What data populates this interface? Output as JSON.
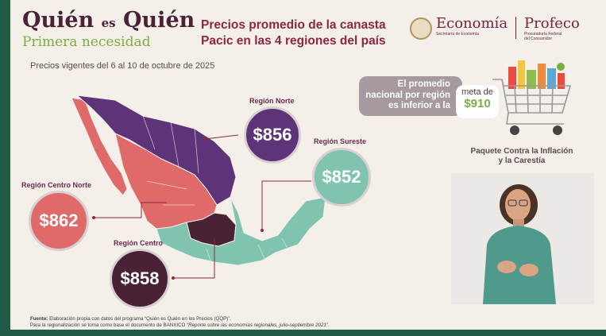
{
  "brand": {
    "title_a": "Quién",
    "title_es": "es",
    "title_b": "Quién",
    "subtitle": "Primera necesidad"
  },
  "headline": {
    "line1": "Precios promedio de la canasta",
    "line2": "Pacic en las 4 regiones del país"
  },
  "logos": {
    "economia": "Economía",
    "economia_sub": "Secretaría de Economía",
    "profeco": "Profeco",
    "profeco_sub1": "Procuraduría Federal",
    "profeco_sub2": "del Consumidor"
  },
  "dates": "Precios vigentes del 6 al 10 de octubre de 2025",
  "regions": {
    "norte": {
      "label": "Región Norte",
      "price": "$856",
      "color": "#5d3478"
    },
    "sureste": {
      "label": "Región Sureste",
      "price": "$852",
      "color": "#7fc3b0"
    },
    "centro_norte": {
      "label": "Región Centro Norte",
      "price": "$862",
      "color": "#e0696a"
    },
    "centro": {
      "label": "Región Centro",
      "price": "$858",
      "color": "#4a2236"
    }
  },
  "goal": {
    "line1": "El promedio",
    "line2": "nacional por región",
    "line3": "es inferior a la",
    "pill_label": "meta de",
    "pill_value": "$910"
  },
  "program": {
    "line1": "Paquete Contra la Inflación",
    "line2": "y la Carestía"
  },
  "footnote": {
    "label": "Fuente:",
    "line1": "Elaboración propia con datos del programa “Quién es Quién en los Precios (QQP)”.",
    "line2a": "Para la regionalización se toma como base el documento de BANXICO ",
    "line2b": "“Reporte sobre las economías regionales, julio-septiembre 2021”",
    "line2c": "."
  }
}
